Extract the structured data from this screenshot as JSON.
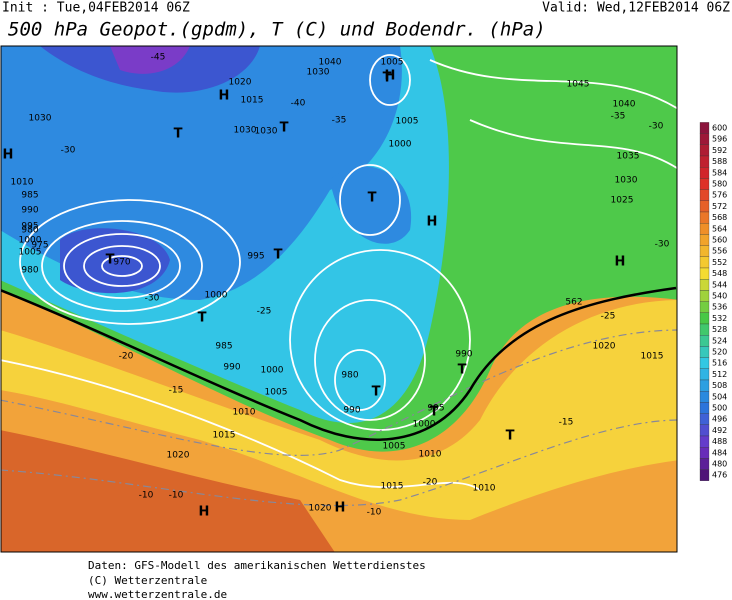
{
  "header": {
    "init": "Init : Tue,04FEB2014 06Z",
    "valid": "Valid: Wed,12FEB2014 06Z",
    "title": "500 hPa Geopot.(gpdm), T (C) und Bodendr. (hPa)"
  },
  "colorbar": {
    "ticks": [
      600,
      596,
      592,
      588,
      584,
      580,
      576,
      572,
      568,
      564,
      560,
      556,
      552,
      548,
      544,
      540,
      536,
      532,
      528,
      524,
      520,
      516,
      512,
      508,
      504,
      500,
      496,
      492,
      488,
      484,
      480,
      476
    ]
  },
  "map": {
    "labels": [
      "-45",
      "1030",
      "1020",
      "1015",
      "1040",
      "1005",
      "1030",
      "H",
      "-40",
      "1030",
      "T",
      "-35",
      "1030",
      "1005",
      "1000",
      "-30",
      "T",
      "H",
      "1010",
      "985",
      "990",
      "995",
      "1000",
      "1005",
      "980",
      "T",
      "970",
      "-30",
      "975",
      "980",
      "T",
      "995",
      "-25",
      "1000",
      "T",
      "985",
      "-20",
      "990",
      "1000",
      "1005",
      "1010",
      "-15",
      "1015",
      "1020",
      "-10",
      "H",
      "1020",
      "-10",
      "H",
      "1010",
      "1015",
      "-20",
      "T",
      "980",
      "990",
      "995",
      "1000",
      "1005",
      "T",
      "990",
      "T",
      "1010",
      "-15",
      "T",
      "1020",
      "1015",
      "-25",
      "562",
      "H",
      "-30",
      "1030",
      "1025",
      "1035",
      "1040",
      "1045",
      "-35",
      "-30",
      "T",
      "H",
      "H",
      "T",
      "-10"
    ]
  },
  "footer": [
    "Daten: GFS-Modell des amerikanischen Wetterdienstes",
    "(C) Wetterzentrale",
    "www.wetterzentrale.de"
  ]
}
